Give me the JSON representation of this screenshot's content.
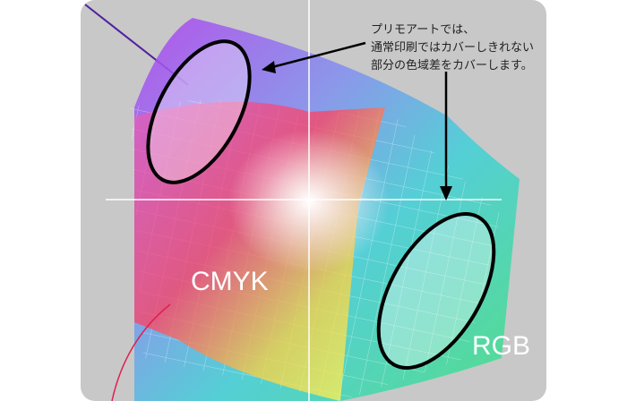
{
  "annotation": {
    "lines": [
      "プリモアートでは、",
      "通常印刷ではカバーしきれない",
      "部分の色域差をカバーします。"
    ]
  },
  "labels": {
    "cmyk": "CMYK",
    "rgb": "RGB"
  },
  "colors": {
    "background": "#c8c8c8",
    "outline": "#000000"
  }
}
